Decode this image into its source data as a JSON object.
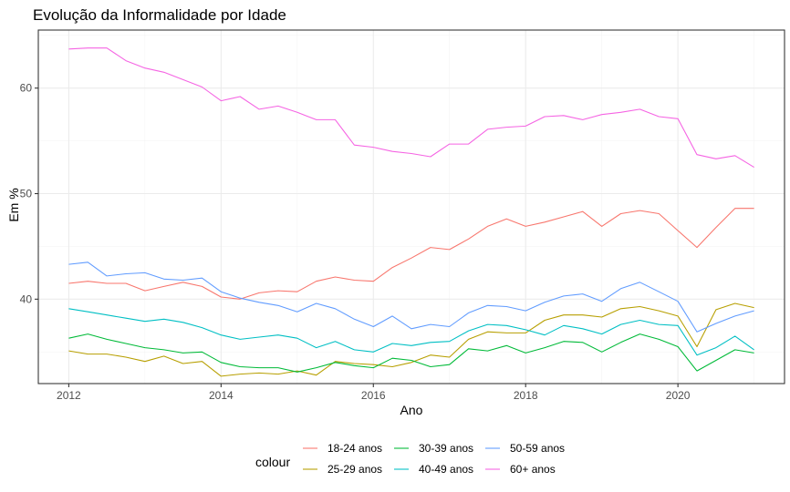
{
  "chart_data": {
    "type": "line",
    "title": "Evolução da Informalidade por Idade",
    "xlabel": "Ano",
    "ylabel": "Em %",
    "xlim": [
      2011.6,
      2021.4
    ],
    "ylim": [
      32.0,
      65.5
    ],
    "x_ticks": [
      2012,
      2014,
      2016,
      2018,
      2020
    ],
    "x_tick_labels": [
      "2012",
      "2014",
      "2016",
      "2018",
      "2020"
    ],
    "y_ticks": [
      40,
      50,
      60
    ],
    "y_tick_labels": [
      "40",
      "50",
      "60"
    ],
    "grid": true,
    "legend": {
      "title": "colour",
      "position": "bottom"
    },
    "x": [
      2012.0,
      2012.25,
      2012.5,
      2012.75,
      2013.0,
      2013.25,
      2013.5,
      2013.75,
      2014.0,
      2014.25,
      2014.5,
      2014.75,
      2015.0,
      2015.25,
      2015.5,
      2015.75,
      2016.0,
      2016.25,
      2016.5,
      2016.75,
      2017.0,
      2017.25,
      2017.5,
      2017.75,
      2018.0,
      2018.25,
      2018.5,
      2018.75,
      2019.0,
      2019.25,
      2019.5,
      2019.75,
      2020.0,
      2020.25,
      2020.5,
      2020.75,
      2021.0
    ],
    "series": [
      {
        "name": "18-24 anos",
        "color": "#F8766D",
        "values": [
          41.5,
          41.7,
          41.5,
          41.5,
          40.8,
          41.2,
          41.6,
          41.2,
          40.2,
          40.0,
          40.6,
          40.8,
          40.7,
          41.7,
          42.1,
          41.8,
          41.7,
          43.0,
          43.9,
          44.9,
          44.7,
          45.7,
          46.9,
          47.6,
          46.9,
          47.3,
          47.8,
          48.3,
          46.9,
          48.1,
          48.4,
          48.1,
          46.5,
          44.9,
          46.8,
          48.6,
          48.6
        ]
      },
      {
        "name": "25-29 anos",
        "color": "#B79F00",
        "values": [
          35.1,
          34.8,
          34.8,
          34.5,
          34.1,
          34.6,
          33.9,
          34.1,
          32.7,
          32.9,
          33.0,
          32.9,
          33.2,
          32.8,
          34.1,
          33.9,
          33.8,
          33.6,
          34.0,
          34.7,
          34.5,
          36.2,
          36.9,
          36.8,
          36.8,
          38.0,
          38.5,
          38.5,
          38.3,
          39.1,
          39.3,
          38.9,
          38.4,
          35.5,
          39.0,
          39.6,
          39.2
        ]
      },
      {
        "name": "30-39 anos",
        "color": "#00BA38",
        "values": [
          36.3,
          36.7,
          36.2,
          35.8,
          35.4,
          35.2,
          34.9,
          35.0,
          34.0,
          33.6,
          33.5,
          33.5,
          33.1,
          33.5,
          34.0,
          33.7,
          33.5,
          34.4,
          34.2,
          33.6,
          33.8,
          35.3,
          35.1,
          35.6,
          34.9,
          35.4,
          36.0,
          35.9,
          35.0,
          35.9,
          36.7,
          36.2,
          35.5,
          33.2,
          34.2,
          35.2,
          34.9
        ]
      },
      {
        "name": "40-49 anos",
        "color": "#00BFC4",
        "values": [
          39.1,
          38.8,
          38.5,
          38.2,
          37.9,
          38.1,
          37.8,
          37.3,
          36.6,
          36.2,
          36.4,
          36.6,
          36.3,
          35.4,
          36.0,
          35.2,
          35.0,
          35.8,
          35.6,
          35.9,
          36.0,
          37.0,
          37.6,
          37.5,
          37.1,
          36.6,
          37.5,
          37.2,
          36.7,
          37.6,
          38.0,
          37.6,
          37.5,
          34.7,
          35.4,
          36.5,
          35.2
        ]
      },
      {
        "name": "50-59 anos",
        "color": "#619CFF",
        "values": [
          43.3,
          43.5,
          42.2,
          42.4,
          42.5,
          41.9,
          41.8,
          42.0,
          40.7,
          40.1,
          39.7,
          39.4,
          38.8,
          39.6,
          39.1,
          38.1,
          37.4,
          38.4,
          37.2,
          37.6,
          37.4,
          38.7,
          39.4,
          39.3,
          38.9,
          39.7,
          40.3,
          40.5,
          39.8,
          41.0,
          41.6,
          40.7,
          39.8,
          36.9,
          37.7,
          38.4,
          38.9
        ]
      },
      {
        "name": "60+ anos",
        "color": "#F564E3",
        "values": [
          63.7,
          63.8,
          63.8,
          62.6,
          61.9,
          61.5,
          60.8,
          60.1,
          58.8,
          59.2,
          58.0,
          58.3,
          57.7,
          57.0,
          57.0,
          54.6,
          54.4,
          54.0,
          53.8,
          53.5,
          54.7,
          54.7,
          56.1,
          56.3,
          56.4,
          57.3,
          57.4,
          57.0,
          57.5,
          57.7,
          58.0,
          57.3,
          57.1,
          53.7,
          53.3,
          53.6,
          52.5
        ]
      }
    ]
  }
}
